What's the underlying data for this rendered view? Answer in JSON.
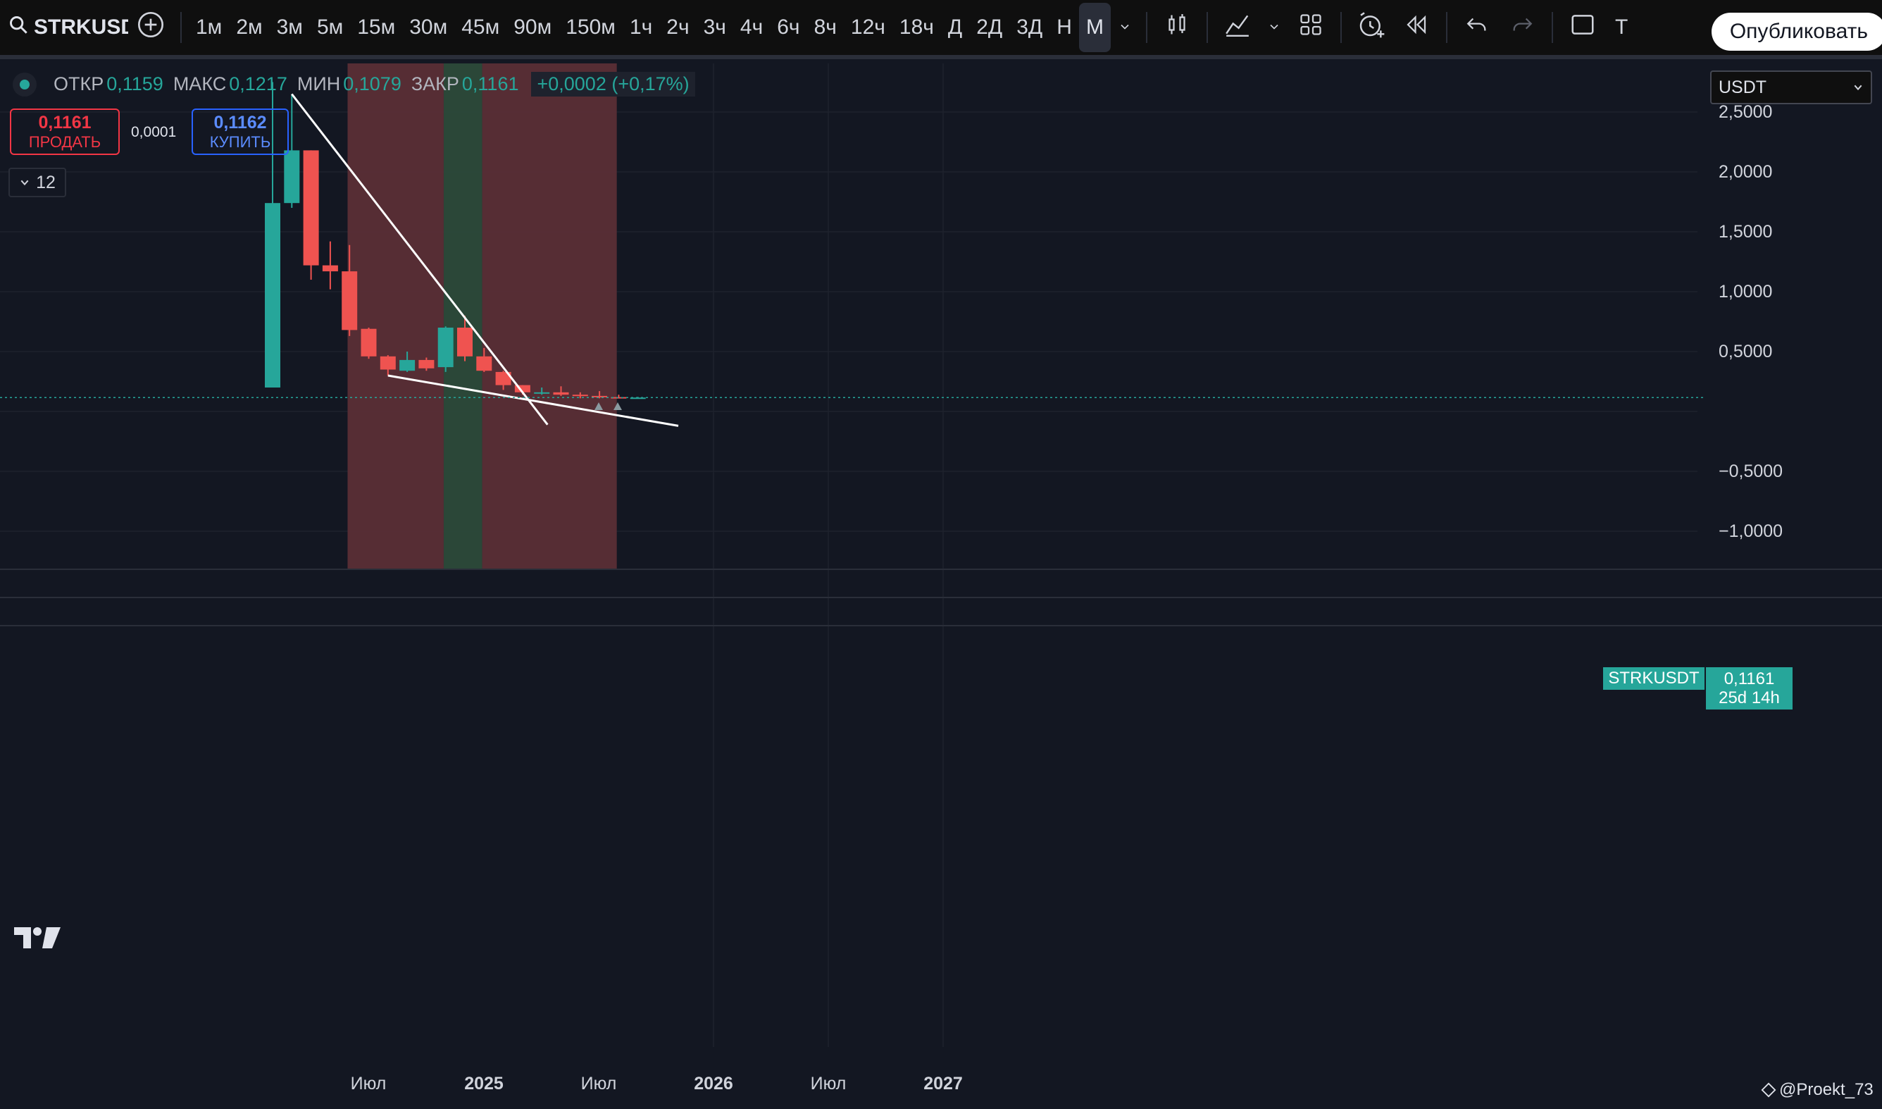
{
  "toolbar": {
    "symbol": "STRKUSDT",
    "intervals": [
      "1м",
      "2м",
      "3м",
      "5м",
      "15м",
      "30м",
      "45м",
      "90м",
      "150м",
      "1ч",
      "2ч",
      "3ч",
      "4ч",
      "6ч",
      "8ч",
      "12ч",
      "18ч",
      "Д",
      "2Д",
      "3Д",
      "Н",
      "М"
    ],
    "active_interval": "М",
    "template_label": "Т",
    "publish_label": "Опубликовать"
  },
  "legend": {
    "open_label": "ОТКР",
    "open": "0,1159",
    "high_label": "МАКС",
    "high": "0,1217",
    "low_label": "МИН",
    "low": "0,1079",
    "close_label": "ЗАКР",
    "close": "0,1161",
    "change": "+0,0002 (+0,17%)"
  },
  "trade": {
    "sell_price": "0,1161",
    "sell_label": "ПРОДАТЬ",
    "spread": "0,0001",
    "buy_price": "0,1162",
    "buy_label": "КУПИТЬ"
  },
  "indicators_count": "12",
  "currency": "USDT",
  "price_axis": [
    "2,5000",
    "2,0000",
    "1,5000",
    "1,0000",
    "0,5000",
    "−0,5000",
    "−1,0000"
  ],
  "last_price": {
    "symbol": "STRKUSDT",
    "price": "0,1161",
    "countdown": "25d 14h"
  },
  "time_axis": [
    {
      "label": "Июл",
      "bold": false
    },
    {
      "label": "2025",
      "bold": true
    },
    {
      "label": "Июл",
      "bold": false
    },
    {
      "label": "2026",
      "bold": true
    },
    {
      "label": "Июл",
      "bold": false
    },
    {
      "label": "2027",
      "bold": true
    }
  ],
  "watermark": "@Proekt_73",
  "colors": {
    "up": "#26a69a",
    "down": "#ef5350",
    "bg": "#131722",
    "red_zone": "#5a2e36",
    "green_zone": "#2c4a3a"
  },
  "chart_data": {
    "type": "candlestick",
    "series": [
      {
        "name": "STRKUSDT",
        "candles": [
          {
            "o": 0.2,
            "h": 2.75,
            "l": 0.2,
            "c": 1.74
          },
          {
            "o": 1.74,
            "h": 2.65,
            "l": 1.7,
            "c": 2.18
          },
          {
            "o": 2.18,
            "h": 2.18,
            "l": 1.1,
            "c": 1.22
          },
          {
            "o": 1.22,
            "h": 1.42,
            "l": 1.02,
            "c": 1.17
          },
          {
            "o": 1.17,
            "h": 1.39,
            "l": 0.63,
            "c": 0.68
          },
          {
            "o": 0.69,
            "h": 0.7,
            "l": 0.44,
            "c": 0.46
          },
          {
            "o": 0.46,
            "h": 0.47,
            "l": 0.3,
            "c": 0.35
          },
          {
            "o": 0.34,
            "h": 0.5,
            "l": 0.33,
            "c": 0.43
          },
          {
            "o": 0.43,
            "h": 0.45,
            "l": 0.34,
            "c": 0.36
          },
          {
            "o": 0.37,
            "h": 0.71,
            "l": 0.33,
            "c": 0.7
          },
          {
            "o": 0.7,
            "h": 0.8,
            "l": 0.42,
            "c": 0.46
          },
          {
            "o": 0.46,
            "h": 0.53,
            "l": 0.33,
            "c": 0.34
          },
          {
            "o": 0.33,
            "h": 0.34,
            "l": 0.18,
            "c": 0.22
          },
          {
            "o": 0.22,
            "h": 0.22,
            "l": 0.14,
            "c": 0.16
          },
          {
            "o": 0.16,
            "h": 0.2,
            "l": 0.14,
            "c": 0.16
          },
          {
            "o": 0.16,
            "h": 0.21,
            "l": 0.13,
            "c": 0.14
          },
          {
            "o": 0.14,
            "h": 0.16,
            "l": 0.11,
            "c": 0.13
          },
          {
            "o": 0.13,
            "h": 0.17,
            "l": 0.11,
            "c": 0.12
          },
          {
            "o": 0.12,
            "h": 0.14,
            "l": 0.11,
            "c": 0.116
          },
          {
            "o": 0.1159,
            "h": 0.1217,
            "l": 0.1079,
            "c": 0.1161
          }
        ]
      }
    ],
    "last_price": 0.1161,
    "ylim": [
      -1.3,
      2.9
    ],
    "trendlines": [
      {
        "from": {
          "bar": 1,
          "price": 2.65
        },
        "to": {
          "bar": 14.3,
          "price": -0.11
        }
      },
      {
        "from": {
          "bar": 6,
          "price": 0.3
        },
        "to": {
          "bar": 21.1,
          "price": -0.12
        }
      }
    ],
    "zones": [
      {
        "color": "red",
        "from_bar": 3.9,
        "to_bar": 8.9
      },
      {
        "color": "green",
        "from_bar": 8.9,
        "to_bar": 10.9
      },
      {
        "color": "red",
        "from_bar": 10.9,
        "to_bar": 17.9
      }
    ]
  }
}
